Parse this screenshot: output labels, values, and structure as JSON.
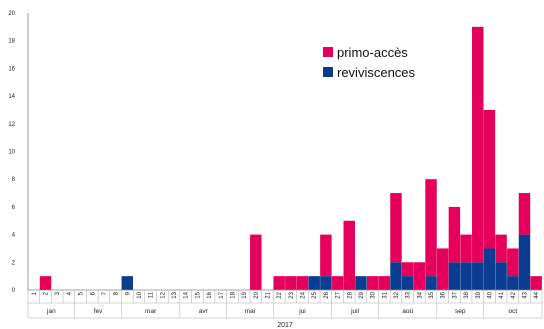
{
  "colors": {
    "primo": "#e4005b",
    "reviv": "#0a3d91",
    "axis": "#888888"
  },
  "chart_data": {
    "type": "bar",
    "stacked": true,
    "categories": [
      "1",
      "2",
      "3",
      "4",
      "5",
      "6",
      "7",
      "8",
      "9",
      "10",
      "11",
      "12",
      "13",
      "14",
      "15",
      "16",
      "17",
      "18",
      "19",
      "20",
      "21",
      "22",
      "23",
      "24",
      "25",
      "26",
      "27",
      "28",
      "29",
      "30",
      "31",
      "32",
      "33",
      "34",
      "35",
      "36",
      "37",
      "38",
      "39",
      "40",
      "41",
      "42",
      "43",
      "44"
    ],
    "series": [
      {
        "name": "reviviscences",
        "values": [
          0,
          0,
          0,
          0,
          0,
          0,
          0,
          0,
          1,
          0,
          0,
          0,
          0,
          0,
          0,
          0,
          0,
          0,
          0,
          0,
          0,
          0,
          0,
          0,
          1,
          1,
          0,
          0,
          1,
          0,
          0,
          2,
          1,
          0,
          1,
          0,
          2,
          2,
          2,
          3,
          2,
          1,
          4,
          0
        ]
      },
      {
        "name": "primo-accès",
        "values": [
          0,
          1,
          0,
          0,
          0,
          0,
          0,
          0,
          0,
          0,
          0,
          0,
          0,
          0,
          0,
          0,
          0,
          0,
          0,
          4,
          0,
          1,
          1,
          1,
          0,
          3,
          1,
          5,
          0,
          1,
          1,
          5,
          1,
          2,
          7,
          3,
          4,
          2,
          17,
          10,
          2,
          2,
          3,
          1
        ]
      }
    ],
    "yticks": [
      "0",
      "2",
      "4",
      "6",
      "8",
      "10",
      "12",
      "14",
      "16",
      "18",
      "20"
    ],
    "ylim": [
      0,
      20
    ],
    "months": [
      {
        "label": "jan",
        "start": 1,
        "end": 4
      },
      {
        "label": "fev",
        "start": 5,
        "end": 8
      },
      {
        "label": "mar",
        "start": 9,
        "end": 13
      },
      {
        "label": "avr",
        "start": 14,
        "end": 17
      },
      {
        "label": "mai",
        "start": 18,
        "end": 21
      },
      {
        "label": "jui",
        "start": 22,
        "end": 26
      },
      {
        "label": "juil",
        "start": 27,
        "end": 30
      },
      {
        "label": "aoû",
        "start": 31,
        "end": 35
      },
      {
        "label": "sep",
        "start": 36,
        "end": 39
      },
      {
        "label": "oct",
        "start": 40,
        "end": 44
      }
    ],
    "year": "2017",
    "legend": {
      "position": "top-right",
      "entries": [
        {
          "label": "primo-accès",
          "series": 1
        },
        {
          "label": "reviviscences",
          "series": 0
        }
      ]
    },
    "grid": false
  }
}
